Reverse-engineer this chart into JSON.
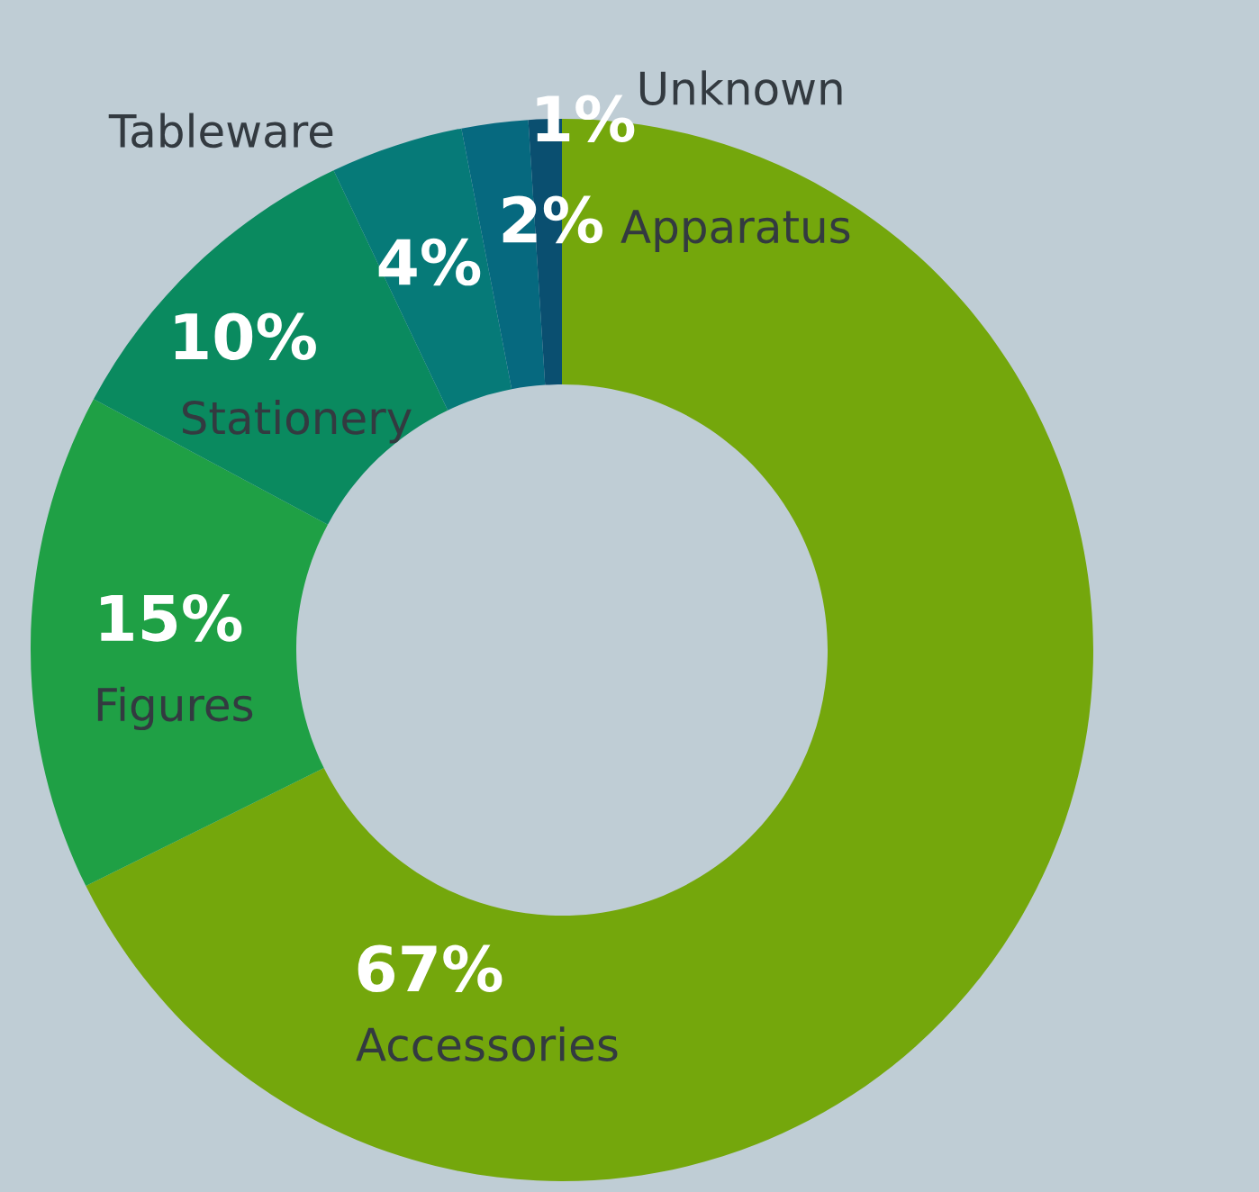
{
  "chart_data": {
    "type": "donut",
    "categories": [
      "Accessories",
      "Figures",
      "Stationery",
      "Tableware",
      "Apparatus",
      "Unknown"
    ],
    "values": [
      67,
      15,
      10,
      4,
      2,
      1
    ],
    "value_labels": [
      "67%",
      "15%",
      "10%",
      "4%",
      "2%",
      "1%"
    ],
    "colors": [
      "#74a70c",
      "#1fa045",
      "#0a8a5f",
      "#067a78",
      "#06697f",
      "#0a4f70"
    ],
    "legend": false
  }
}
